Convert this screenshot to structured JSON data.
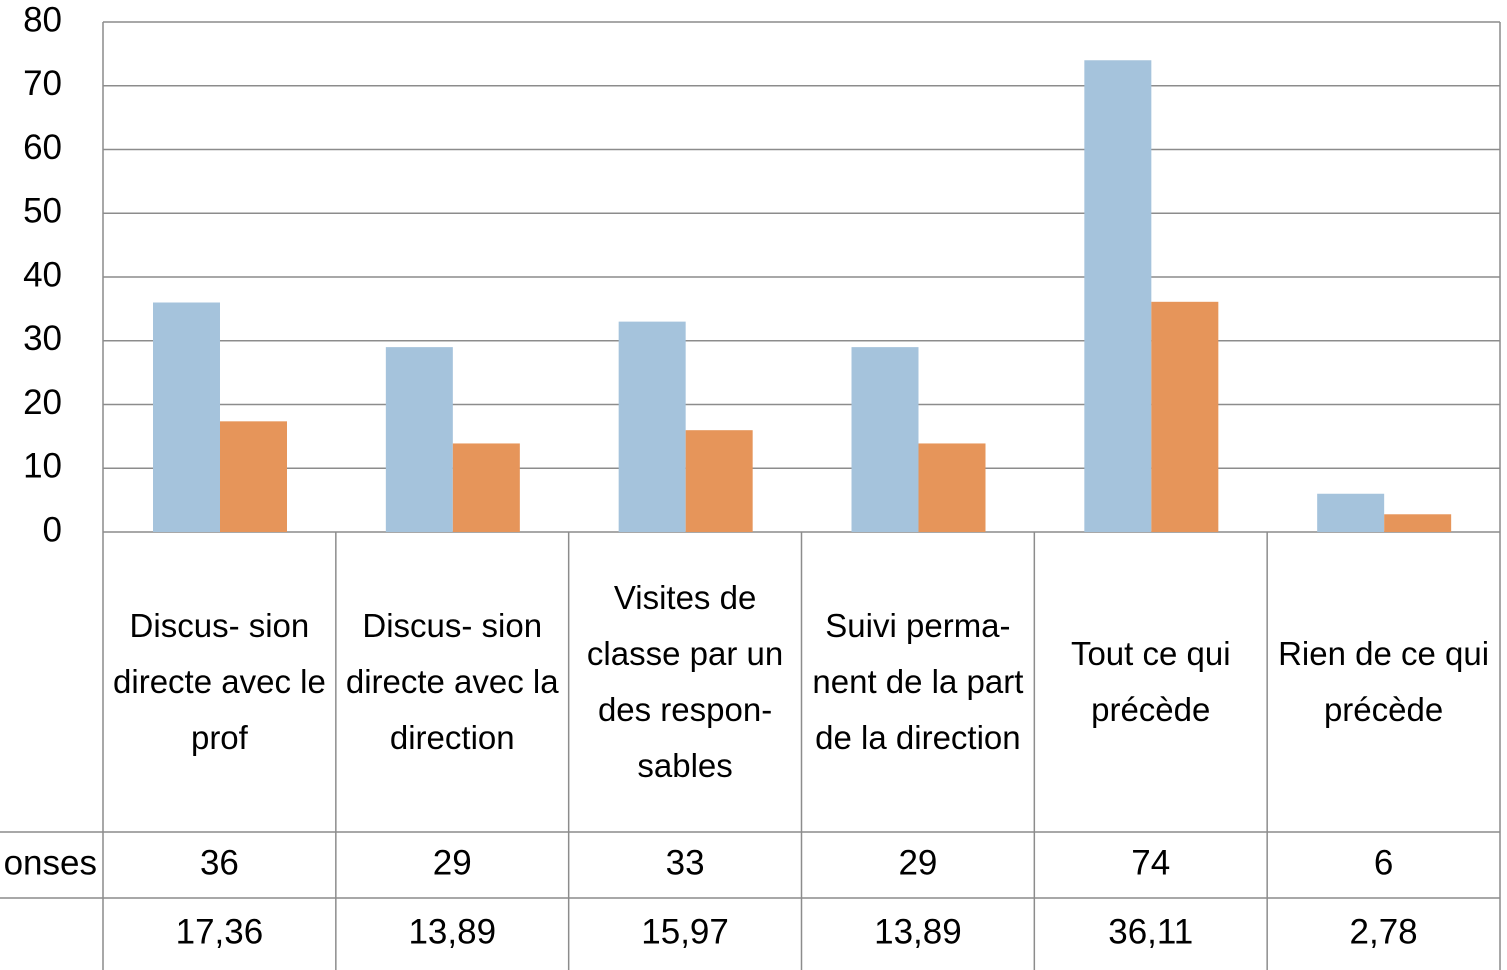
{
  "chart_data": {
    "type": "bar",
    "categories": [
      "Discus- sion directe avec le prof",
      "Discus- sion directe avec la direction",
      "Visites de classe par un des respon- sables",
      "Suivi perma- nent de la part de la direction",
      "Tout ce qui précède",
      "Rien de ce qui précède"
    ],
    "series": [
      {
        "name": "onses",
        "color": "#a5c3dc",
        "values": [
          36,
          29,
          33,
          29,
          74,
          6
        ]
      },
      {
        "color": "#e6955a",
        "values": [
          17.36,
          13.89,
          15.97,
          13.89,
          36.11,
          2.78
        ],
        "value_labels": [
          "17,36",
          "13,89",
          "15,97",
          "13,89",
          "36,11",
          "2,78"
        ]
      }
    ],
    "ylim": [
      0,
      80
    ],
    "yticks": [
      0,
      10,
      20,
      30,
      40,
      50,
      60,
      70,
      80
    ],
    "grid": true
  }
}
